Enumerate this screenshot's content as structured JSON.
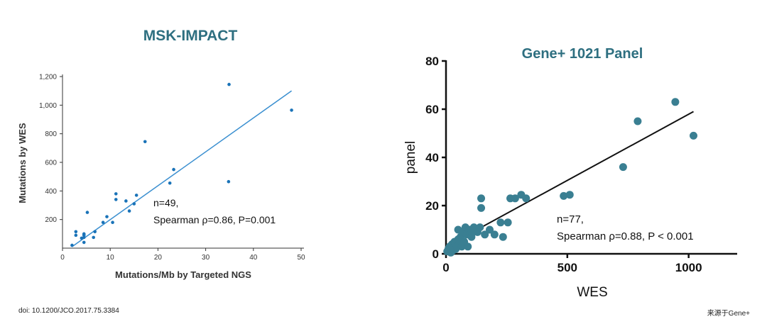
{
  "chart_data": [
    {
      "type": "scatter",
      "title": "MSK-IMPACT",
      "xlabel": "Mutations/Mb by Targeted NGS",
      "ylabel": "Mutations by WES",
      "xlim": [
        0,
        50
      ],
      "ylim": [
        0,
        1200
      ],
      "xticks": [
        "0",
        "10",
        "20",
        "30",
        "40",
        "50"
      ],
      "yticks": [
        "200",
        "400",
        "600",
        "800",
        "1,000",
        "1,200"
      ],
      "annotation": [
        "n=49,",
        "Spearman ρ=0.86, P=0.001"
      ],
      "point_color": "#1a73b8",
      "line_color": "#3a8fd0",
      "fit_line": [
        [
          2,
          10
        ],
        [
          48,
          1100
        ]
      ],
      "points": [
        [
          2,
          20
        ],
        [
          2.8,
          90
        ],
        [
          2.8,
          115
        ],
        [
          4,
          70
        ],
        [
          4.5,
          40
        ],
        [
          4.5,
          75
        ],
        [
          4.5,
          90
        ],
        [
          4.5,
          95
        ],
        [
          4.5,
          100
        ],
        [
          5.2,
          250
        ],
        [
          6.5,
          75
        ],
        [
          6.8,
          115
        ],
        [
          8.5,
          180
        ],
        [
          9.3,
          220
        ],
        [
          10.5,
          180
        ],
        [
          11.2,
          340
        ],
        [
          11.2,
          380
        ],
        [
          13.3,
          330
        ],
        [
          14,
          260
        ],
        [
          15,
          310
        ],
        [
          15.5,
          370
        ],
        [
          17.3,
          745
        ],
        [
          22.5,
          455
        ],
        [
          23.3,
          550
        ],
        [
          34.8,
          465
        ],
        [
          34.9,
          1145
        ],
        [
          48,
          965
        ]
      ]
    },
    {
      "type": "scatter",
      "title": "Gene+ 1021 Panel",
      "xlabel": "WES",
      "ylabel": "panel",
      "xlim": [
        0,
        1200
      ],
      "ylim": [
        0,
        80
      ],
      "xticks": [
        "0",
        "500",
        "1000"
      ],
      "yticks": [
        "0",
        "20",
        "40",
        "60",
        "80"
      ],
      "annotation": [
        "n=77,",
        "Spearman ρ=0.88, P < 0.001"
      ],
      "point_color": "#3a7f92",
      "line_color": "#111111",
      "fit_line": [
        [
          0,
          3
        ],
        [
          1020,
          59
        ]
      ],
      "points": [
        [
          5,
          1
        ],
        [
          10,
          2
        ],
        [
          15,
          3
        ],
        [
          20,
          0.5
        ],
        [
          25,
          4
        ],
        [
          30,
          1.5
        ],
        [
          35,
          5
        ],
        [
          40,
          2
        ],
        [
          45,
          3
        ],
        [
          50,
          6
        ],
        [
          50,
          10
        ],
        [
          55,
          4
        ],
        [
          60,
          7
        ],
        [
          65,
          3
        ],
        [
          70,
          9
        ],
        [
          75,
          5
        ],
        [
          80,
          11
        ],
        [
          85,
          8
        ],
        [
          90,
          3
        ],
        [
          95,
          10
        ],
        [
          100,
          8
        ],
        [
          105,
          7
        ],
        [
          110,
          9
        ],
        [
          115,
          11
        ],
        [
          120,
          10
        ],
        [
          130,
          9
        ],
        [
          140,
          11
        ],
        [
          145,
          19
        ],
        [
          145,
          23
        ],
        [
          160,
          8
        ],
        [
          180,
          10
        ],
        [
          200,
          8
        ],
        [
          225,
          13
        ],
        [
          235,
          7
        ],
        [
          255,
          13
        ],
        [
          265,
          23
        ],
        [
          285,
          23
        ],
        [
          310,
          24.5
        ],
        [
          330,
          23
        ],
        [
          485,
          24
        ],
        [
          510,
          24.5
        ],
        [
          730,
          36
        ],
        [
          790,
          55
        ],
        [
          945,
          63
        ],
        [
          1020,
          49
        ]
      ]
    }
  ],
  "footer": {
    "doi": "doi: 10.1200/JCO.2017.75.3384",
    "source": "来源于Gene+"
  }
}
